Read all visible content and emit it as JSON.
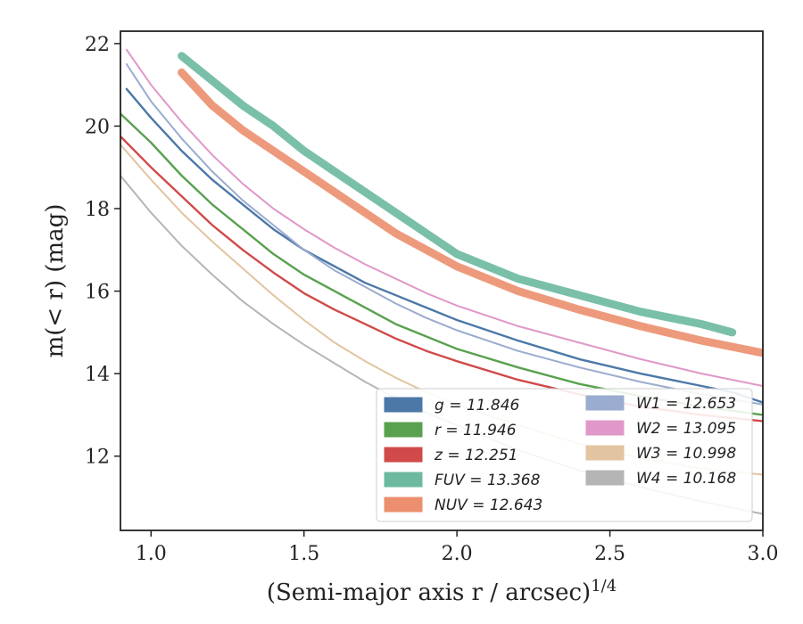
{
  "chart_data": {
    "type": "line",
    "xlabel": "(Semi-major axis r / arcsec)",
    "xlabel_exponent": "1/4",
    "ylabel": "m(< r) (mag)",
    "xlim": [
      0.9,
      3.0
    ],
    "ylim": [
      22.3,
      10.2
    ],
    "y_inverted": true,
    "grid": false,
    "legend_placement": "lower-right",
    "x_ticks": [
      "1.0",
      "1.5",
      "2.0",
      "2.5",
      "3.0"
    ],
    "y_ticks": [
      "12",
      "14",
      "16",
      "18",
      "20",
      "22"
    ],
    "series": [
      {
        "name": "g = 11.846",
        "color": "#4c78a8",
        "x": [
          0.92,
          1.0,
          1.1,
          1.2,
          1.3,
          1.4,
          1.5,
          1.6,
          1.7,
          1.8,
          1.9,
          2.0,
          2.2,
          2.4,
          2.6,
          2.8,
          2.9,
          3.0
        ],
        "y": [
          20.9,
          20.2,
          19.4,
          18.7,
          18.1,
          17.5,
          17.0,
          16.6,
          16.2,
          15.9,
          15.6,
          15.3,
          14.8,
          14.35,
          14.0,
          13.7,
          13.55,
          13.3
        ]
      },
      {
        "name": "r = 11.946",
        "color": "#59a14f",
        "x": [
          0.9,
          1.0,
          1.1,
          1.2,
          1.3,
          1.4,
          1.5,
          1.6,
          1.7,
          1.8,
          1.9,
          2.0,
          2.2,
          2.4,
          2.6,
          2.8,
          3.0
        ],
        "y": [
          20.3,
          19.6,
          18.8,
          18.1,
          17.5,
          16.9,
          16.4,
          16.0,
          15.6,
          15.2,
          14.9,
          14.6,
          14.15,
          13.75,
          13.45,
          13.2,
          13.0
        ]
      },
      {
        "name": "z = 12.251",
        "color": "#d14a4a",
        "x": [
          0.9,
          1.0,
          1.1,
          1.2,
          1.3,
          1.4,
          1.5,
          1.6,
          1.7,
          1.8,
          1.9,
          2.0,
          2.2,
          2.4,
          2.6,
          2.8,
          3.0
        ],
        "y": [
          19.75,
          19.0,
          18.3,
          17.6,
          17.0,
          16.45,
          15.95,
          15.55,
          15.2,
          14.85,
          14.55,
          14.3,
          13.85,
          13.5,
          13.2,
          13.0,
          12.85
        ]
      },
      {
        "name": "FUV = 13.368",
        "color": "#6cb9a0",
        "x": [
          1.1,
          1.2,
          1.3,
          1.4,
          1.5,
          1.6,
          1.7,
          1.8,
          1.9,
          2.0,
          2.2,
          2.4,
          2.6,
          2.8,
          2.9
        ],
        "y": [
          21.7,
          21.1,
          20.5,
          20.0,
          19.4,
          18.9,
          18.4,
          17.9,
          17.4,
          16.9,
          16.3,
          15.9,
          15.5,
          15.2,
          15.0
        ]
      },
      {
        "name": "NUV = 12.643",
        "color": "#eb8f6e",
        "x": [
          1.1,
          1.2,
          1.3,
          1.4,
          1.5,
          1.6,
          1.7,
          1.8,
          1.9,
          2.0,
          2.2,
          2.4,
          2.6,
          2.8,
          3.0
        ],
        "y": [
          21.3,
          20.5,
          19.9,
          19.4,
          18.9,
          18.4,
          17.9,
          17.4,
          17.0,
          16.6,
          16.0,
          15.55,
          15.15,
          14.8,
          14.5
        ]
      },
      {
        "name": "W1 = 12.653",
        "color": "#9aaccf",
        "x": [
          0.92,
          1.0,
          1.1,
          1.2,
          1.3,
          1.4,
          1.5,
          1.6,
          1.7,
          1.8,
          1.9,
          2.0,
          2.2,
          2.4,
          2.6,
          2.8,
          3.0
        ],
        "y": [
          21.5,
          20.6,
          19.7,
          18.9,
          18.2,
          17.6,
          17.0,
          16.5,
          16.1,
          15.7,
          15.35,
          15.05,
          14.55,
          14.15,
          13.8,
          13.5,
          13.25
        ]
      },
      {
        "name": "W2 = 13.095",
        "color": "#e098c8",
        "x": [
          0.92,
          1.0,
          1.1,
          1.2,
          1.3,
          1.4,
          1.5,
          1.6,
          1.7,
          1.8,
          1.9,
          2.0,
          2.2,
          2.4,
          2.6,
          2.8,
          3.0
        ],
        "y": [
          21.85,
          21.0,
          20.1,
          19.3,
          18.6,
          18.0,
          17.5,
          17.05,
          16.65,
          16.3,
          15.95,
          15.65,
          15.15,
          14.75,
          14.35,
          14.0,
          13.7
        ]
      },
      {
        "name": "W3 = 10.998",
        "color": "#e2c4a0",
        "x": [
          0.9,
          1.0,
          1.1,
          1.2,
          1.3,
          1.4,
          1.5,
          1.6,
          1.7,
          1.8,
          1.9,
          2.0,
          2.2,
          2.4,
          2.6,
          2.8,
          3.0
        ],
        "y": [
          19.55,
          18.7,
          17.9,
          17.2,
          16.55,
          15.9,
          15.3,
          14.75,
          14.3,
          13.9,
          13.55,
          13.25,
          12.75,
          12.3,
          11.95,
          11.7,
          11.55
        ]
      },
      {
        "name": "W4 = 10.168",
        "color": "#b5b5b5",
        "x": [
          0.9,
          1.0,
          1.1,
          1.2,
          1.3,
          1.4,
          1.5,
          1.6,
          1.7,
          1.8,
          1.9,
          2.0,
          2.2,
          2.4,
          2.6,
          2.8,
          3.0
        ],
        "y": [
          18.8,
          17.9,
          17.1,
          16.4,
          15.75,
          15.2,
          14.7,
          14.25,
          13.8,
          13.4,
          13.05,
          12.75,
          12.15,
          11.65,
          11.25,
          10.9,
          10.6
        ]
      }
    ]
  }
}
